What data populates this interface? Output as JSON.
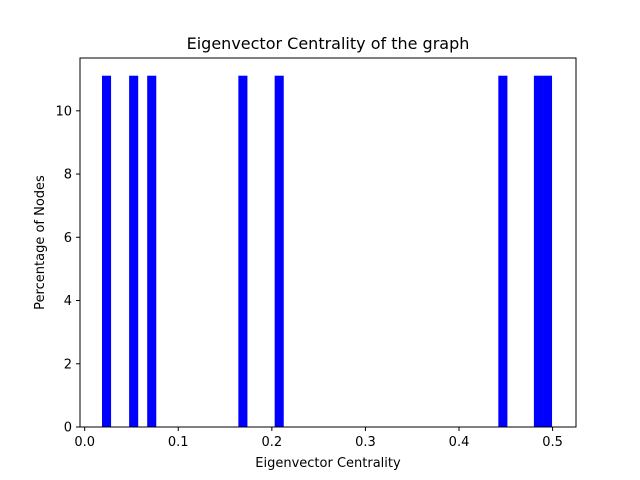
{
  "chart_data": {
    "type": "bar",
    "title": "Eigenvector Centrality of the graph",
    "xlabel": "Eigenvector Centrality",
    "ylabel": "Percentage of Nodes",
    "xlim": [
      -0.005,
      0.525
    ],
    "ylim": [
      0,
      11.67
    ],
    "bin_width": 0.0097,
    "bars": [
      {
        "x": 0.0185,
        "value": 11.11
      },
      {
        "x": 0.0475,
        "value": 11.11
      },
      {
        "x": 0.0668,
        "value": 11.11
      },
      {
        "x": 0.1642,
        "value": 11.11
      },
      {
        "x": 0.203,
        "value": 11.11
      },
      {
        "x": 0.442,
        "value": 11.11
      },
      {
        "x": 0.48,
        "value": 11.11
      },
      {
        "x": 0.4897,
        "value": 11.11
      }
    ],
    "x_ticks": [
      0.0,
      0.1,
      0.2,
      0.3,
      0.4,
      0.5
    ],
    "x_tick_labels": [
      "0.0",
      "0.1",
      "0.2",
      "0.3",
      "0.4",
      "0.5"
    ],
    "y_ticks": [
      0,
      2,
      4,
      6,
      8,
      10
    ],
    "y_tick_labels": [
      "0",
      "2",
      "4",
      "6",
      "8",
      "10"
    ],
    "bar_color": "#0000ff",
    "grid": false,
    "legend": "none"
  }
}
